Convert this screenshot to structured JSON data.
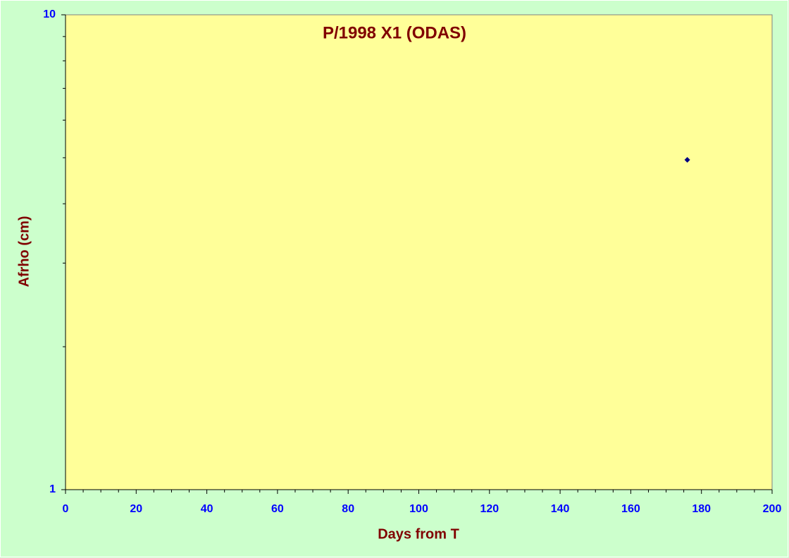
{
  "chart_data": {
    "type": "scatter",
    "title": "P/1998 X1 (ODAS)",
    "x_label": "Days from T",
    "y_label": "Afrho (cm)",
    "x": [
      176
    ],
    "values": [
      4.95
    ],
    "color": "#000080",
    "xlim": [
      0,
      200
    ],
    "xticks": [
      0,
      20,
      40,
      60,
      80,
      100,
      120,
      140,
      160,
      180,
      200
    ],
    "minor_xticks": [
      5,
      10,
      15,
      25,
      30,
      35,
      45,
      50,
      55,
      65,
      70,
      75,
      85,
      90,
      95,
      105,
      110,
      115,
      125,
      130,
      135,
      145,
      150,
      155,
      165,
      170,
      175,
      185,
      190,
      195
    ],
    "ylim": [
      1,
      10
    ],
    "yticks": [
      1,
      10
    ],
    "minor_yticks": [
      2,
      3,
      4,
      5,
      6,
      7,
      8,
      9
    ],
    "log_y": true,
    "grid": false
  }
}
